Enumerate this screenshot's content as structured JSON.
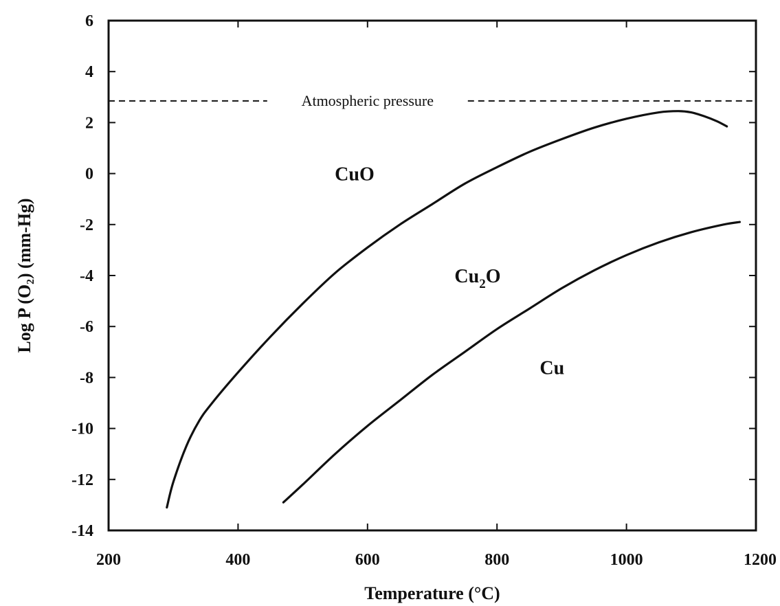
{
  "chart_data": {
    "type": "line",
    "xlabel": "Temperature (°C)",
    "ylabel": "Log P (O₂) (mm-Hg)",
    "xlim": [
      200,
      1200
    ],
    "ylim": [
      -14,
      6
    ],
    "x_ticks": [
      200,
      400,
      600,
      800,
      1000,
      1200
    ],
    "y_ticks": [
      6,
      4,
      2,
      0,
      -2,
      -4,
      -6,
      -8,
      -10,
      -12,
      -14
    ],
    "grid": false,
    "series": [
      {
        "id": "cuo_cu2o",
        "x": [
          290,
          300,
          320,
          340,
          360,
          400,
          450,
          500,
          550,
          600,
          650,
          700,
          750,
          800,
          850,
          900,
          950,
          1000,
          1050,
          1080,
          1100,
          1120,
          1140,
          1155
        ],
        "y": [
          -13.1,
          -12.1,
          -10.7,
          -9.7,
          -9.0,
          -7.8,
          -6.4,
          -5.1,
          -3.9,
          -2.9,
          -2.0,
          -1.2,
          -0.4,
          0.25,
          0.85,
          1.35,
          1.8,
          2.15,
          2.4,
          2.45,
          2.4,
          2.25,
          2.05,
          1.85
        ]
      },
      {
        "id": "cu2o_cu",
        "x": [
          470,
          500,
          550,
          600,
          650,
          700,
          750,
          800,
          850,
          900,
          950,
          1000,
          1050,
          1100,
          1150,
          1175
        ],
        "y": [
          -12.9,
          -12.2,
          -11.0,
          -9.9,
          -8.9,
          -7.9,
          -7.0,
          -6.1,
          -5.3,
          -4.5,
          -3.8,
          -3.2,
          -2.7,
          -2.3,
          -2.0,
          -1.9
        ]
      }
    ],
    "reference_line": {
      "y": 2.85,
      "label": "Atmospheric pressure"
    },
    "region_labels": [
      {
        "text": "CuO",
        "x": 580,
        "y": 0.0
      },
      {
        "text": "Cu2O",
        "text_main": "Cu",
        "text_sub": "2",
        "text_tail": "O",
        "x": 770,
        "y": -4.0
      },
      {
        "text": "Cu",
        "x": 885,
        "y": -7.6
      }
    ]
  }
}
